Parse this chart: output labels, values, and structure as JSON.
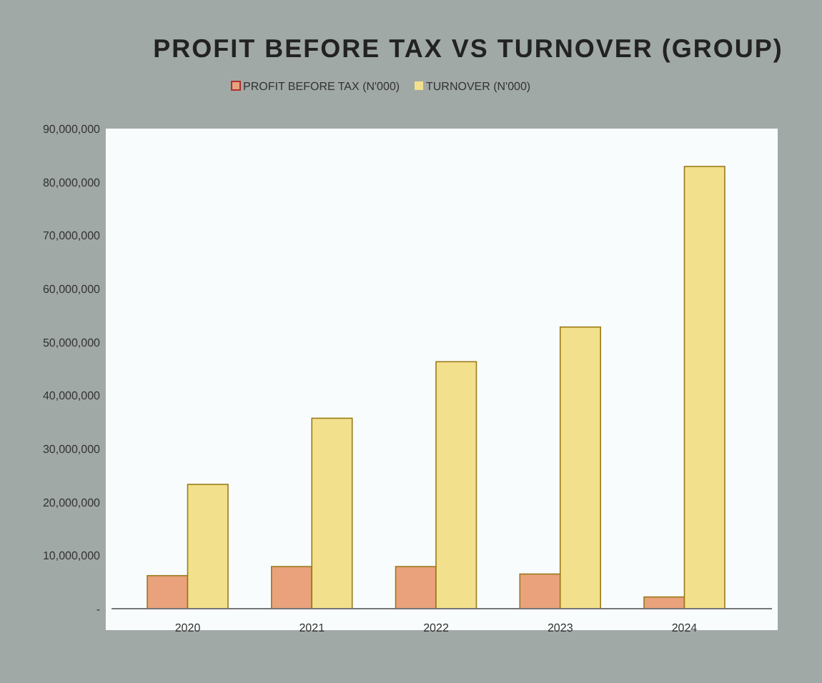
{
  "chart_data": {
    "type": "bar",
    "title": "PROFIT BEFORE TAX VS TURNOVER (GROUP)",
    "categories": [
      "2020",
      "2021",
      "2022",
      "2023",
      "2024"
    ],
    "series": [
      {
        "name": "PROFIT BEFORE TAX (N'000)",
        "color": "#e9a27c",
        "values": [
          6200000,
          7900000,
          7900000,
          6500000,
          2200000
        ]
      },
      {
        "name": "TURNOVER (N'000)",
        "color": "#f3e08c",
        "values": [
          23300000,
          35700000,
          46300000,
          52800000,
          82900000
        ]
      }
    ],
    "ylim": [
      0,
      90000000
    ],
    "yticks": [
      {
        "value": 0,
        "label": "-"
      },
      {
        "value": 10000000,
        "label": "10,000,000"
      },
      {
        "value": 20000000,
        "label": "20,000,000"
      },
      {
        "value": 30000000,
        "label": "30,000,000"
      },
      {
        "value": 40000000,
        "label": "40,000,000"
      },
      {
        "value": 50000000,
        "label": "50,000,000"
      },
      {
        "value": 60000000,
        "label": "60,000,000"
      },
      {
        "value": 70000000,
        "label": "70,000,000"
      },
      {
        "value": 80000000,
        "label": "80,000,000"
      },
      {
        "value": 90000000,
        "label": "90,000,000"
      }
    ],
    "legend": "top",
    "grid": false
  }
}
